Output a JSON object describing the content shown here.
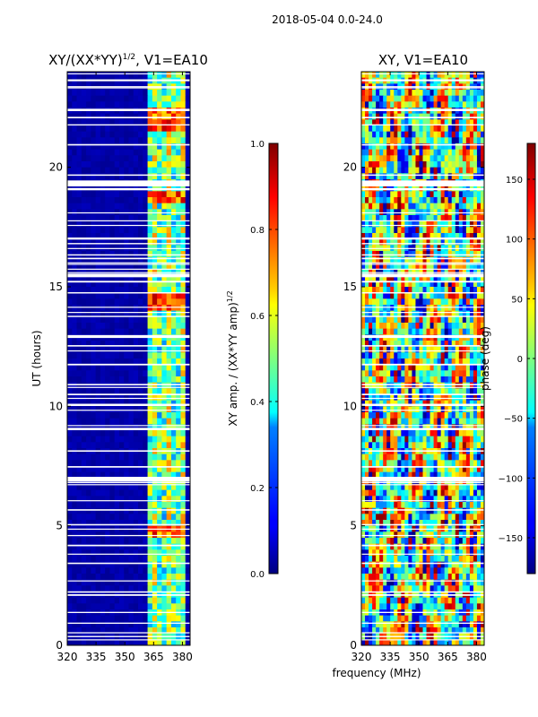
{
  "figure": {
    "suptitle": "2018-05-04 0.0-24.0",
    "xlabel": "frequency (MHz)",
    "ylabel": "UT (hours)"
  },
  "chart_data": [
    {
      "type": "heatmap",
      "id": "amp",
      "title": "XY/(XX*YY)",
      "title_sup": "1/2",
      "title_suffix": ", V1=EA10",
      "xticks": [
        "320",
        "335",
        "350",
        "365",
        "380"
      ],
      "xtick_values": [
        320,
        335,
        350,
        365,
        380
      ],
      "xlim": [
        320,
        384
      ],
      "yticks": [
        "0",
        "5",
        "10",
        "15",
        "20"
      ],
      "ytick_values": [
        0,
        5,
        10,
        15,
        20
      ],
      "ylim": [
        0,
        24
      ],
      "colormap": "jet",
      "clim": [
        0.0,
        1.0
      ],
      "colorbar": {
        "label": "XY amp. / (XX*YY amp)",
        "label_sup": "1/2",
        "ticks": [
          "0.0",
          "0.2",
          "0.4",
          "0.6",
          "0.8",
          "1.0"
        ],
        "tick_values": [
          0.0,
          0.2,
          0.4,
          0.6,
          0.8,
          1.0
        ]
      }
    },
    {
      "type": "heatmap",
      "id": "phase",
      "title": "XY, V1=EA10",
      "xticks": [
        "320",
        "335",
        "350",
        "365",
        "380"
      ],
      "xtick_values": [
        320,
        335,
        350,
        365,
        380
      ],
      "xlim": [
        320,
        384
      ],
      "yticks": [
        "0",
        "5",
        "10",
        "15",
        "20"
      ],
      "ytick_values": [
        0,
        5,
        10,
        15,
        20
      ],
      "ylim": [
        0,
        24
      ],
      "colormap": "jet",
      "clim": [
        -180,
        180
      ],
      "colorbar": {
        "label": "phase (deg)",
        "ticks": [
          "−150",
          "−100",
          "−50",
          "0",
          "50",
          "100",
          "150"
        ],
        "tick_values": [
          -150,
          -100,
          -50,
          0,
          50,
          100,
          150
        ]
      }
    }
  ],
  "colors": {
    "axis": "#000000",
    "flagged": "#ffffff",
    "background": "#ffffff"
  }
}
